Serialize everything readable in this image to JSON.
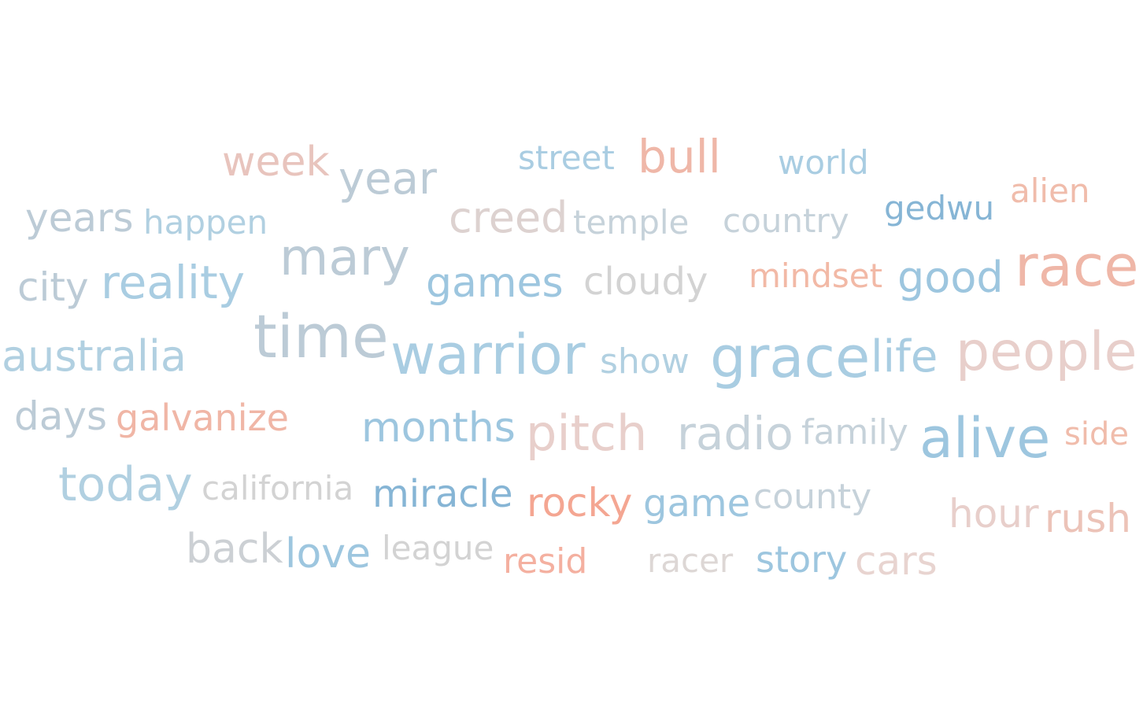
{
  "words": [
    {
      "text": "week",
      "color": "#e8c4bd"
    },
    {
      "text": "year",
      "color": "#bccbd6"
    },
    {
      "text": "street",
      "color": "#aacde2"
    },
    {
      "text": "bull",
      "color": "#efb7a8"
    },
    {
      "text": "world",
      "color": "#a9cde2"
    },
    {
      "text": "alien",
      "color": "#f0bcab"
    },
    {
      "text": "years",
      "color": "#bccbd6"
    },
    {
      "text": "happen",
      "color": "#b1d0e1"
    },
    {
      "text": "creed",
      "color": "#ddd2d0"
    },
    {
      "text": "temple",
      "color": "#c6d2da"
    },
    {
      "text": "country",
      "color": "#c6d2da"
    },
    {
      "text": "gedwu",
      "color": "#86b5d5"
    },
    {
      "text": "mary",
      "color": "#bccbd6"
    },
    {
      "text": "city",
      "color": "#bccbd6"
    },
    {
      "text": "reality",
      "color": "#a9cde2"
    },
    {
      "text": "games",
      "color": "#9dc6df"
    },
    {
      "text": "cloudy",
      "color": "#d3d3d3"
    },
    {
      "text": "mindset",
      "color": "#f2b9a6"
    },
    {
      "text": "good",
      "color": "#9dc6df"
    },
    {
      "text": "race",
      "color": "#efb7a8"
    },
    {
      "text": "australia",
      "color": "#b1d0e1"
    },
    {
      "text": "time",
      "color": "#bccbd6"
    },
    {
      "text": "warrior",
      "color": "#a9cde2"
    },
    {
      "text": "show",
      "color": "#b1d0e1"
    },
    {
      "text": "grace",
      "color": "#a9cde2"
    },
    {
      "text": "life",
      "color": "#a9cde2"
    },
    {
      "text": "people",
      "color": "#e8cfcb"
    },
    {
      "text": "days",
      "color": "#bccbd6"
    },
    {
      "text": "galvanize",
      "color": "#f0b6a6"
    },
    {
      "text": "months",
      "color": "#9dc6df"
    },
    {
      "text": "pitch",
      "color": "#e8cfcb"
    },
    {
      "text": "radio",
      "color": "#c6d2da"
    },
    {
      "text": "family",
      "color": "#c6d2da"
    },
    {
      "text": "alive",
      "color": "#9dc6df"
    },
    {
      "text": "side",
      "color": "#f0bcab"
    },
    {
      "text": "today",
      "color": "#b1d0e1"
    },
    {
      "text": "california",
      "color": "#d3d3d3"
    },
    {
      "text": "miracle",
      "color": "#86b5d5"
    },
    {
      "text": "rocky",
      "color": "#f4a692"
    },
    {
      "text": "game",
      "color": "#9dc6df"
    },
    {
      "text": "county",
      "color": "#c6d2da"
    },
    {
      "text": "hour",
      "color": "#e8cfcb"
    },
    {
      "text": "rush",
      "color": "#ecc3b8"
    },
    {
      "text": "back",
      "color": "#ccd0d4"
    },
    {
      "text": "love",
      "color": "#9dc6df"
    },
    {
      "text": "league",
      "color": "#d3d3d3"
    },
    {
      "text": "resid",
      "color": "#f4b0a0"
    },
    {
      "text": "racer",
      "color": "#ddd7d5"
    },
    {
      "text": "story",
      "color": "#9dc6df"
    },
    {
      "text": "cars",
      "color": "#e8d4d0"
    }
  ]
}
